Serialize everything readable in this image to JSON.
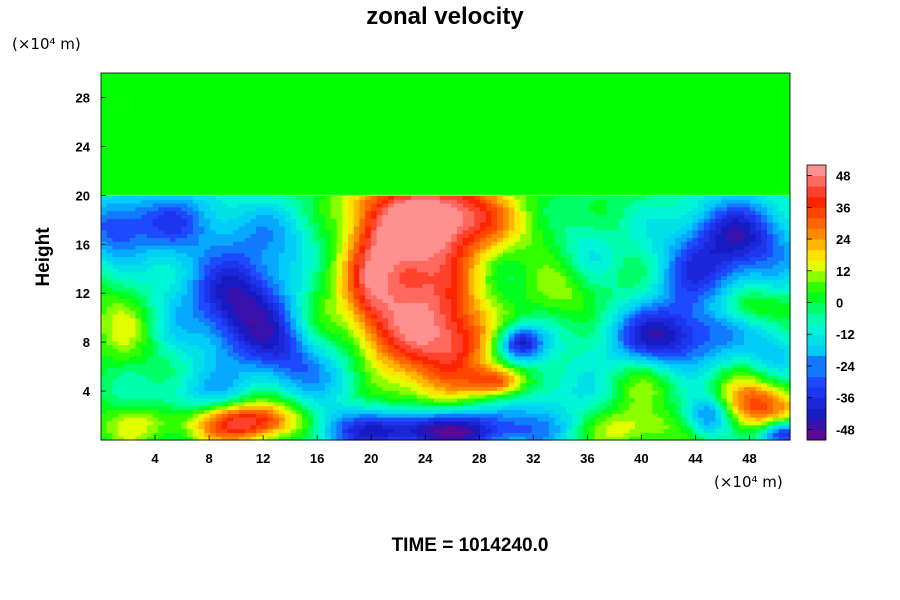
{
  "chart_data": {
    "type": "heatmap",
    "title": "zonal velocity",
    "ylabel": "Height",
    "x_unit": "(×10⁴ m)",
    "y_unit": "(×10⁴ m)",
    "footer": "TIME = 1014240.0",
    "xlim": [
      0,
      51
    ],
    "ylim": [
      0,
      30
    ],
    "x_ticks": [
      4,
      8,
      12,
      16,
      20,
      24,
      28,
      32,
      36,
      40,
      44,
      48
    ],
    "y_ticks": [
      4,
      8,
      12,
      16,
      20,
      24,
      28
    ],
    "colorbar": {
      "ticks": [
        48,
        36,
        24,
        12,
        0,
        -12,
        -24,
        -36,
        -48
      ],
      "range": [
        -52,
        52
      ],
      "colors": [
        "#800080",
        "#1818c0",
        "#2040ff",
        "#00c8ff",
        "#00ffcc",
        "#00ff00",
        "#ffff00",
        "#ff8000",
        "#ff2000",
        "#ff9090"
      ]
    },
    "upper_layer": {
      "height_from": 20,
      "value": 0
    },
    "features": [
      {
        "kind": "jet",
        "x": 23,
        "y": 11,
        "sx": 3.2,
        "sy": 5.5,
        "v": 46
      },
      {
        "kind": "jet",
        "x": 22,
        "y": 18,
        "sx": 4,
        "sy": 2.5,
        "v": 32
      },
      {
        "kind": "jet",
        "x": 27,
        "y": 18.5,
        "sx": 2.5,
        "sy": 2,
        "v": 28
      },
      {
        "kind": "jet",
        "x": 26.5,
        "y": 8,
        "sx": 1.8,
        "sy": 2.2,
        "v": 24
      },
      {
        "kind": "jet",
        "x": 29.5,
        "y": 4.8,
        "sx": 1.5,
        "sy": 0.9,
        "v": 40
      },
      {
        "kind": "jet",
        "x": 11,
        "y": 1.5,
        "sx": 3,
        "sy": 1.2,
        "v": 52
      },
      {
        "kind": "jet",
        "x": 49,
        "y": 3,
        "sx": 2.2,
        "sy": 1.6,
        "v": 36
      },
      {
        "kind": "jet",
        "x": 39,
        "y": 1,
        "sx": 2.5,
        "sy": 1.2,
        "v": 18
      },
      {
        "kind": "jet",
        "x": 2,
        "y": 10,
        "sx": 1.8,
        "sy": 2.5,
        "v": 14
      },
      {
        "kind": "jet",
        "x": 35,
        "y": 12,
        "sx": 2,
        "sy": 1.8,
        "v": 10
      },
      {
        "kind": "jet",
        "x": 40,
        "y": 5,
        "sx": 2,
        "sy": 1.5,
        "v": 10
      },
      {
        "kind": "jet",
        "x": 3,
        "y": 1.5,
        "sx": 2,
        "sy": 1.2,
        "v": 14
      },
      {
        "kind": "jet",
        "x": 16,
        "y": 13,
        "sx": 1.5,
        "sy": 3,
        "v": 8
      },
      {
        "kind": "jet",
        "x": 48,
        "y": 11,
        "sx": 2,
        "sy": 1,
        "v": 14
      },
      {
        "kind": "jet",
        "x": 33,
        "y": 17,
        "sx": 2,
        "sy": 1.5,
        "v": 6
      },
      {
        "kind": "jet",
        "x": 36,
        "y": 16,
        "sx": 1.5,
        "sy": 2,
        "v": -14
      },
      {
        "kind": "jet",
        "x": 10.5,
        "y": 11,
        "sx": 2.8,
        "sy": 3.5,
        "v": -46
      },
      {
        "kind": "jet",
        "x": 24,
        "y": 0.8,
        "sx": 6,
        "sy": 1.3,
        "v": -54
      },
      {
        "kind": "jet",
        "x": 47,
        "y": 16.5,
        "sx": 3.5,
        "sy": 2.5,
        "v": -40
      },
      {
        "kind": "jet",
        "x": 42,
        "y": 8.5,
        "sx": 3.5,
        "sy": 2,
        "v": -42
      },
      {
        "kind": "jet",
        "x": 31,
        "y": 8,
        "sx": 1.2,
        "sy": 1,
        "v": -42
      },
      {
        "kind": "jet",
        "x": 5,
        "y": 18,
        "sx": 4,
        "sy": 2,
        "v": -26
      },
      {
        "kind": "jet",
        "x": 1,
        "y": 17,
        "sx": 1.5,
        "sy": 2,
        "v": -20
      },
      {
        "kind": "jet",
        "x": 15.5,
        "y": 17,
        "sx": 2.5,
        "sy": 2.2,
        "v": -20
      },
      {
        "kind": "jet",
        "x": 4.5,
        "y": 12,
        "sx": 2,
        "sy": 3,
        "v": -12
      },
      {
        "kind": "jet",
        "x": 7,
        "y": 3.5,
        "sx": 3,
        "sy": 1.5,
        "v": -16
      },
      {
        "kind": "jet",
        "x": 18,
        "y": 5,
        "sx": 2.5,
        "sy": 2,
        "v": -18
      },
      {
        "kind": "jet",
        "x": 33,
        "y": 4,
        "sx": 3,
        "sy": 2,
        "v": -14
      },
      {
        "kind": "jet",
        "x": 44,
        "y": 13,
        "sx": 2.5,
        "sy": 2,
        "v": -18
      },
      {
        "kind": "jet",
        "x": 50,
        "y": 7,
        "sx": 1.5,
        "sy": 2,
        "v": -18
      },
      {
        "kind": "jet",
        "x": 45,
        "y": 2,
        "sx": 1.2,
        "sy": 1.2,
        "v": -30
      },
      {
        "kind": "jet",
        "x": 50.5,
        "y": 0.5,
        "sx": 1.2,
        "sy": 0.8,
        "v": -48
      },
      {
        "kind": "jet",
        "x": 14,
        "y": 7,
        "sx": 2,
        "sy": 2,
        "v": -20
      },
      {
        "kind": "jet",
        "x": 20,
        "y": 13,
        "sx": 1.2,
        "sy": 3,
        "v": 16
      }
    ]
  }
}
